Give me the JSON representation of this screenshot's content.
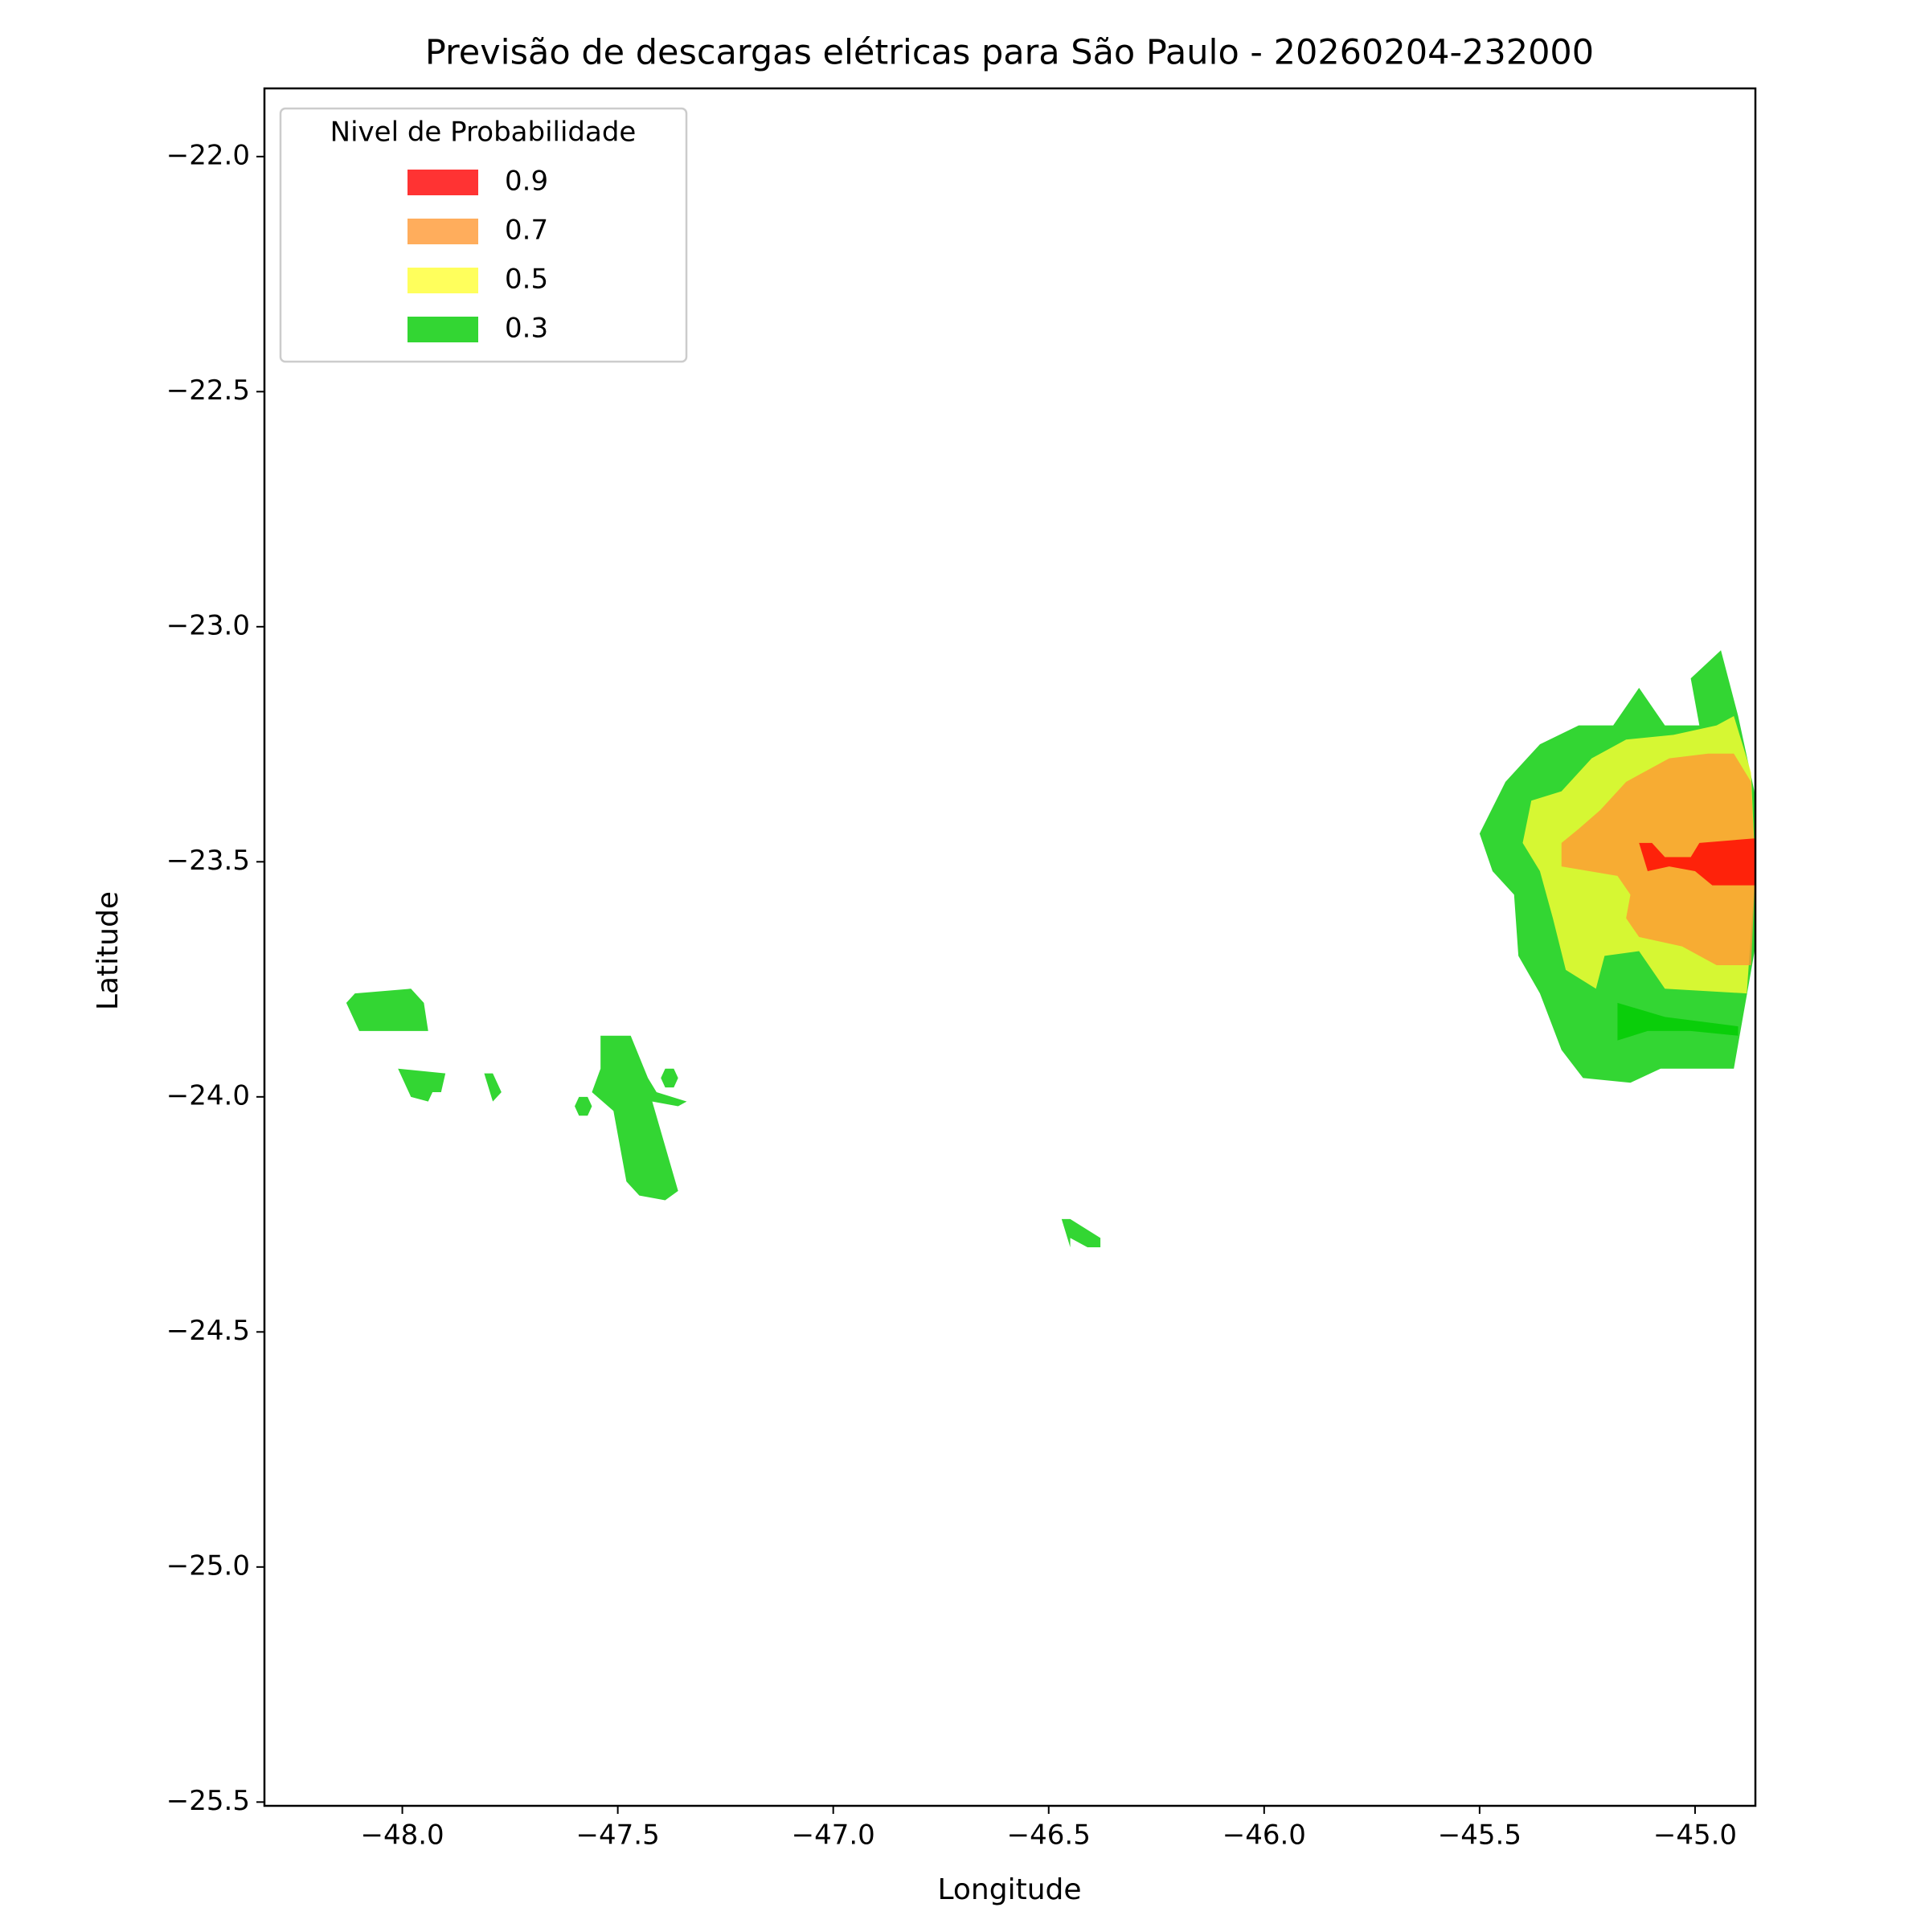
{
  "chart_data": {
    "type": "contour-map",
    "title": "Previsão de descargas elétricas para São Paulo - 20260204-232000",
    "x_label": "Longitude",
    "y_label": "Latitude",
    "xlim": [
      -48.32,
      -44.86
    ],
    "ylim": [
      -25.508,
      -21.855
    ],
    "xticks": [
      {
        "value": -48.0,
        "label": "−48.0"
      },
      {
        "value": -47.5,
        "label": "−47.5"
      },
      {
        "value": -47.0,
        "label": "−47.0"
      },
      {
        "value": -46.5,
        "label": "−46.5"
      },
      {
        "value": -46.0,
        "label": "−46.0"
      },
      {
        "value": -45.5,
        "label": "−45.5"
      },
      {
        "value": -45.0,
        "label": "−45.0"
      }
    ],
    "yticks": [
      {
        "value": -22.0,
        "label": "−22.0"
      },
      {
        "value": -22.5,
        "label": "−22.5"
      },
      {
        "value": -23.0,
        "label": "−23.0"
      },
      {
        "value": -23.5,
        "label": "−23.5"
      },
      {
        "value": -24.0,
        "label": "−24.0"
      },
      {
        "value": -24.5,
        "label": "−24.5"
      },
      {
        "value": -25.0,
        "label": "−25.0"
      },
      {
        "value": -25.5,
        "label": "−25.5"
      }
    ],
    "legend_title": "Nivel de Probabilidade",
    "legend_corner": "upper left",
    "fill_opacity": 0.8,
    "series": [
      {
        "name": "0.9",
        "color": "#ff0000",
        "regions": [
          [
            [
              -45.13,
              -23.46
            ],
            [
              -45.1,
              -23.46
            ],
            [
              -45.07,
              -23.49
            ],
            [
              -45.01,
              -23.49
            ],
            [
              -44.99,
              -23.46
            ],
            [
              -44.86,
              -23.45
            ],
            [
              -44.86,
              -23.55
            ],
            [
              -44.96,
              -23.55
            ],
            [
              -45.0,
              -23.52
            ],
            [
              -45.06,
              -23.51
            ],
            [
              -45.11,
              -23.52
            ]
          ]
        ]
      },
      {
        "name": "0.7",
        "color": "#ff9933",
        "regions": [
          [
            [
              -44.91,
              -23.27
            ],
            [
              -44.87,
              -23.33
            ],
            [
              -44.86,
              -23.52
            ],
            [
              -44.87,
              -23.72
            ],
            [
              -44.95,
              -23.72
            ],
            [
              -45.03,
              -23.68
            ],
            [
              -45.13,
              -23.66
            ],
            [
              -45.16,
              -23.62
            ],
            [
              -45.15,
              -23.57
            ],
            [
              -45.18,
              -23.53
            ],
            [
              -45.31,
              -23.51
            ],
            [
              -45.31,
              -23.46
            ],
            [
              -45.27,
              -23.43
            ],
            [
              -45.22,
              -23.39
            ],
            [
              -45.16,
              -23.33
            ],
            [
              -45.06,
              -23.28
            ],
            [
              -44.97,
              -23.27
            ]
          ]
        ]
      },
      {
        "name": "0.5",
        "color": "#ffff33",
        "regions": [
          [
            [
              -44.91,
              -23.19
            ],
            [
              -44.87,
              -23.31
            ],
            [
              -44.86,
              -23.52
            ],
            [
              -44.88,
              -23.78
            ],
            [
              -45.07,
              -23.77
            ],
            [
              -45.13,
              -23.69
            ],
            [
              -45.21,
              -23.7
            ],
            [
              -45.23,
              -23.77
            ],
            [
              -45.3,
              -23.73
            ],
            [
              -45.33,
              -23.62
            ],
            [
              -45.36,
              -23.52
            ],
            [
              -45.4,
              -23.46
            ],
            [
              -45.38,
              -23.37
            ],
            [
              -45.31,
              -23.35
            ],
            [
              -45.24,
              -23.28
            ],
            [
              -45.16,
              -23.24
            ],
            [
              -45.05,
              -23.23
            ],
            [
              -44.95,
              -23.21
            ]
          ]
        ]
      },
      {
        "name": "0.3",
        "color": "#00cc00",
        "regions": [
          [
            [
              -44.94,
              -23.05
            ],
            [
              -44.9,
              -23.19
            ],
            [
              -44.86,
              -23.36
            ],
            [
              -44.86,
              -23.68
            ],
            [
              -44.91,
              -23.94
            ],
            [
              -45.08,
              -23.94
            ],
            [
              -45.15,
              -23.97
            ],
            [
              -45.26,
              -23.96
            ],
            [
              -45.31,
              -23.9
            ],
            [
              -45.36,
              -23.78
            ],
            [
              -45.41,
              -23.7
            ],
            [
              -45.42,
              -23.57
            ],
            [
              -45.47,
              -23.52
            ],
            [
              -45.5,
              -23.44
            ],
            [
              -45.44,
              -23.33
            ],
            [
              -45.36,
              -23.25
            ],
            [
              -45.27,
              -23.21
            ],
            [
              -45.19,
              -23.21
            ],
            [
              -45.13,
              -23.13
            ],
            [
              -45.07,
              -23.21
            ],
            [
              -44.99,
              -23.21
            ],
            [
              -45.01,
              -23.11
            ]
          ],
          [
            [
              -45.18,
              -23.8
            ],
            [
              -45.07,
              -23.83
            ],
            [
              -44.9,
              -23.85
            ],
            [
              -44.9,
              -23.87
            ],
            [
              -45.01,
              -23.86
            ],
            [
              -45.11,
              -23.86
            ],
            [
              -45.18,
              -23.88
            ]
          ],
          [
            [
              -48.11,
              -23.78
            ],
            [
              -47.98,
              -23.77
            ],
            [
              -47.95,
              -23.8
            ],
            [
              -47.94,
              -23.86
            ],
            [
              -48.1,
              -23.86
            ],
            [
              -48.13,
              -23.8
            ]
          ],
          [
            [
              -48.01,
              -23.94
            ],
            [
              -47.9,
              -23.95
            ],
            [
              -47.91,
              -23.99
            ],
            [
              -47.93,
              -23.99
            ],
            [
              -47.94,
              -24.01
            ],
            [
              -47.98,
              -24.0
            ]
          ],
          [
            [
              -47.81,
              -23.95
            ],
            [
              -47.79,
              -23.95
            ],
            [
              -47.77,
              -23.99
            ],
            [
              -47.79,
              -24.01
            ]
          ],
          [
            [
              -47.54,
              -23.87
            ],
            [
              -47.47,
              -23.87
            ],
            [
              -47.43,
              -23.96
            ],
            [
              -47.41,
              -23.99
            ],
            [
              -47.34,
              -24.01
            ],
            [
              -47.36,
              -24.02
            ],
            [
              -47.42,
              -24.01
            ],
            [
              -47.36,
              -24.2
            ],
            [
              -47.39,
              -24.22
            ],
            [
              -47.45,
              -24.21
            ],
            [
              -47.48,
              -24.18
            ],
            [
              -47.51,
              -24.03
            ],
            [
              -47.56,
              -23.99
            ],
            [
              -47.54,
              -23.94
            ]
          ],
          [
            [
              -47.56,
              -24.02
            ],
            [
              -47.57,
              -24.0
            ],
            [
              -47.59,
              -24.0
            ],
            [
              -47.6,
              -24.02
            ],
            [
              -47.59,
              -24.04
            ],
            [
              -47.57,
              -24.04
            ]
          ],
          [
            [
              -47.36,
              -23.96
            ],
            [
              -47.37,
              -23.94
            ],
            [
              -47.39,
              -23.94
            ],
            [
              -47.4,
              -23.96
            ],
            [
              -47.39,
              -23.98
            ],
            [
              -47.37,
              -23.98
            ]
          ],
          [
            [
              -46.47,
              -24.26
            ],
            [
              -46.45,
              -24.26
            ],
            [
              -46.38,
              -24.3
            ],
            [
              -46.38,
              -24.32
            ],
            [
              -46.41,
              -24.32
            ],
            [
              -46.45,
              -24.3
            ],
            [
              -46.45,
              -24.32
            ]
          ]
        ]
      }
    ]
  }
}
